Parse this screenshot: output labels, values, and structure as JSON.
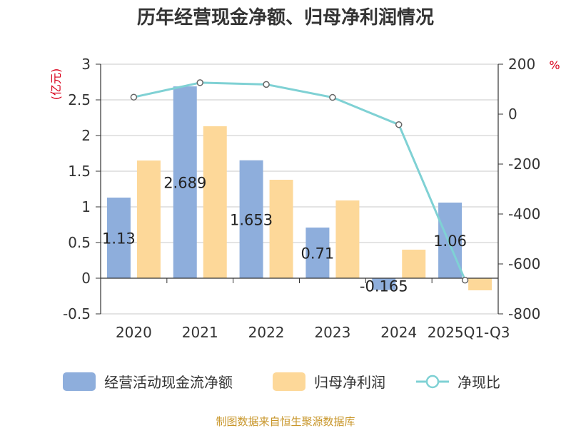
{
  "chart_data": {
    "type": "bar+line",
    "title": "历年经营现金净额、归母净利润情况",
    "categories": [
      "2020",
      "2021",
      "2022",
      "2023",
      "2024",
      "2025Q1-Q3"
    ],
    "series": [
      {
        "name": "经营活动现金流净额",
        "type": "bar",
        "axis": "left",
        "color": "#8eaedc",
        "values": [
          1.13,
          2.689,
          1.653,
          0.71,
          -0.165,
          1.06
        ],
        "labels": [
          "1.13",
          "2.689",
          "1.653",
          "0.71",
          "-0.165",
          "1.06"
        ]
      },
      {
        "name": "归母净利润",
        "type": "bar",
        "axis": "left",
        "color": "#fdd899",
        "values": [
          1.65,
          2.13,
          1.38,
          1.09,
          0.4,
          -0.17
        ]
      },
      {
        "name": "净现比",
        "type": "line",
        "axis": "right",
        "color": "#7fd1d4",
        "values": [
          68,
          126,
          119,
          67,
          -42,
          -665
        ]
      }
    ],
    "y_left": {
      "unit": "(亿元)",
      "min": -0.5,
      "max": 3,
      "ticks": [
        "-0.5",
        "0",
        "0.5",
        "1",
        "1.5",
        "2",
        "2.5",
        "3"
      ]
    },
    "y_right": {
      "unit": "%",
      "min": -800,
      "max": 200,
      "ticks": [
        "-800",
        "-600",
        "-400",
        "-200",
        "0",
        "200"
      ]
    },
    "grid": true,
    "legend_position": "bottom"
  },
  "source": "制图数据来自恒生聚源数据库"
}
